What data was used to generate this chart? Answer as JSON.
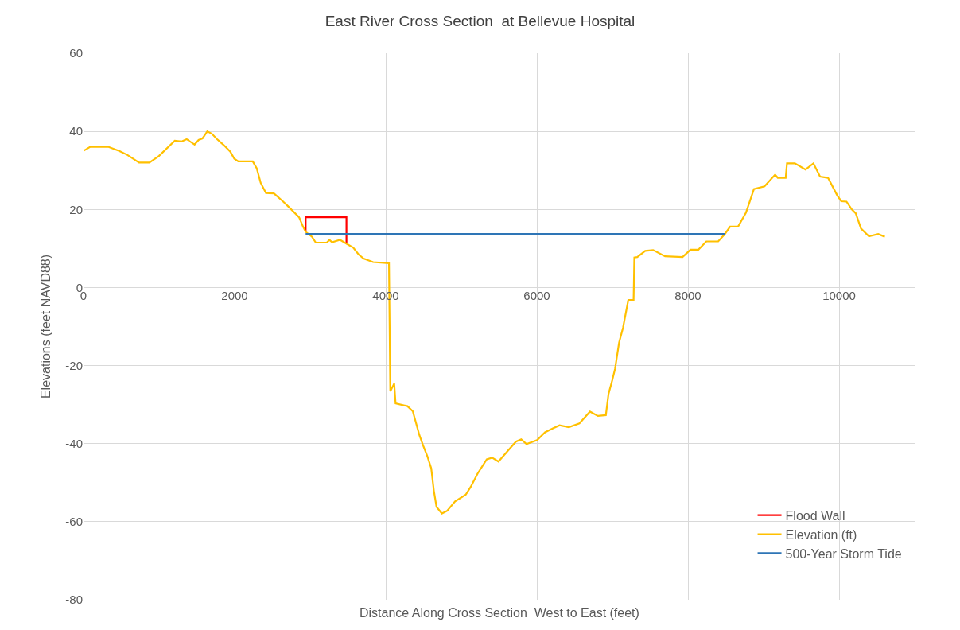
{
  "chart_data": {
    "type": "line",
    "title": "East River Cross Section  at Bellevue Hospital",
    "xlabel": "Distance Along Cross Section  West to East (feet)",
    "ylabel": "Elevations (feet NAVD88)",
    "xlim": [
      0,
      11000
    ],
    "xticks": [
      0,
      2000,
      4000,
      6000,
      8000,
      10000
    ],
    "ylim": [
      -80,
      60
    ],
    "yticks": [
      -80,
      -60,
      -40,
      -20,
      0,
      20,
      40,
      60
    ],
    "grid": true,
    "legend": "bottom right",
    "marker": "none",
    "line_style": "solid",
    "series": [
      {
        "name": "Flood Wall",
        "color": "#ff0000",
        "x": [
          2940,
          2940,
          3480,
          3480
        ],
        "values": [
          14.3,
          18,
          18,
          11.2
        ]
      },
      {
        "name": "Elevation (ft)",
        "color": "#ffc000",
        "x": [
          0,
          85,
          333,
          472,
          578,
          735,
          872,
          998,
          1208,
          1295,
          1365,
          1470,
          1523,
          1575,
          1638,
          1697,
          1768,
          1855,
          1943,
          1995,
          2048,
          2240,
          2293,
          2345,
          2415,
          2520,
          2643,
          2713,
          2853,
          2905,
          2940,
          3024,
          3074,
          3220,
          3255,
          3290,
          3395,
          3483,
          3570,
          3640,
          3707,
          3833,
          4043,
          4060,
          4112,
          4130,
          4287,
          4358,
          4445,
          4497,
          4550,
          4602,
          4637,
          4672,
          4743,
          4813,
          4918,
          5058,
          5124,
          5215,
          5337,
          5408,
          5492,
          5618,
          5723,
          5793,
          5863,
          6003,
          6108,
          6213,
          6300,
          6423,
          6563,
          6703,
          6808,
          6913,
          6948,
          7000,
          7035,
          7088,
          7140,
          7210,
          7280,
          7290,
          7329,
          7434,
          7539,
          7697,
          7928,
          8033,
          8138,
          8243,
          8400,
          8488,
          8558,
          8663,
          8768,
          8873,
          9013,
          9153,
          9188,
          9293,
          9310,
          9415,
          9555,
          9660,
          9748,
          9853,
          9975,
          10028,
          10098,
          10168,
          10220,
          10290,
          10395,
          10518,
          10605
        ],
        "values": [
          35,
          36,
          36,
          35,
          34,
          32,
          32,
          33.7,
          37.6,
          37.4,
          38,
          36.6,
          37.8,
          38.2,
          40,
          39.4,
          38,
          36.5,
          34.8,
          33,
          32.3,
          32.3,
          30.5,
          26.8,
          24.2,
          24.1,
          22,
          20.7,
          18,
          15.6,
          14.3,
          13,
          11.5,
          11.5,
          12.2,
          11.6,
          12.2,
          11.2,
          10.2,
          8.5,
          7.4,
          6.5,
          6.2,
          -26.6,
          -24.6,
          -29.7,
          -30.4,
          -31.7,
          -37.8,
          -40.6,
          -43.2,
          -46.3,
          -52.1,
          -56.2,
          -57.9,
          -57.2,
          -54.8,
          -53.1,
          -51.1,
          -47.7,
          -44,
          -43.6,
          -44.6,
          -41.8,
          -39.5,
          -38.9,
          -40.1,
          -39.1,
          -37.1,
          -36.1,
          -35.3,
          -35.8,
          -34.8,
          -31.8,
          -32.9,
          -32.7,
          -27.3,
          -23.6,
          -20.8,
          -14.1,
          -10.3,
          -3.2,
          -3.2,
          7.7,
          7.8,
          9.4,
          9.6,
          8,
          7.8,
          9.7,
          9.7,
          11.8,
          11.8,
          13.7,
          15.6,
          15.6,
          19.2,
          25.2,
          25.9,
          28.9,
          28.1,
          28.1,
          31.8,
          31.8,
          30.2,
          31.8,
          28.4,
          28.1,
          23.6,
          22.1,
          22,
          20,
          19,
          15.1,
          13.1,
          13.7,
          13
        ]
      },
      {
        "name": "500-Year Storm Tide",
        "color": "#2e75b6",
        "x": [
          2940,
          8488
        ],
        "values": [
          13.7,
          13.7
        ]
      }
    ]
  }
}
